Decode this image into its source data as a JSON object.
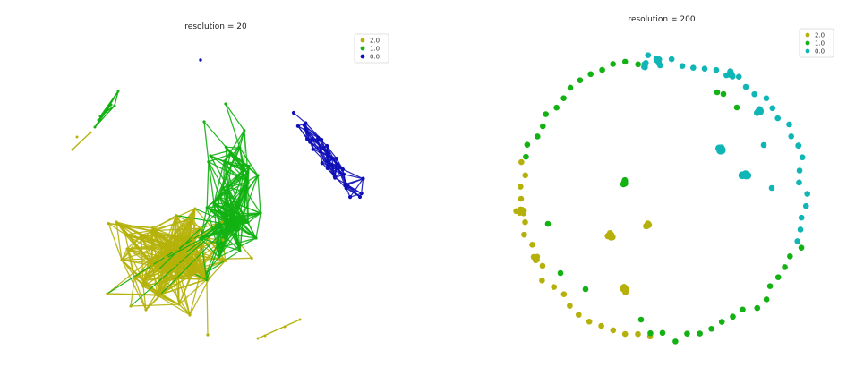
{
  "chart_data": [
    {
      "type": "network",
      "title": "resolution = 20",
      "legend": {
        "placement": "top-right",
        "entries": [
          {
            "label": "2.0",
            "color": "#b5b10a"
          },
          {
            "label": "1.0",
            "color": "#13b113"
          },
          {
            "label": "0.0",
            "color": "#1010b8"
          }
        ]
      },
      "clusters": [
        {
          "community": "2.0",
          "color": "#b5b10a",
          "node_count": 45
        },
        {
          "community": "1.0",
          "color": "#13b113",
          "node_count": 40
        },
        {
          "community": "0.0",
          "color": "#1010b8",
          "node_count": 25
        }
      ],
      "axes": "off"
    },
    {
      "type": "network",
      "title": "resolution = 200",
      "legend": {
        "placement": "top-right",
        "entries": [
          {
            "label": "2.0",
            "color": "#b5b10a"
          },
          {
            "label": "1.0",
            "color": "#13b113"
          },
          {
            "label": "0.0",
            "color": "#10b6b6"
          }
        ]
      },
      "layout": "circular ring with a few inner clusters",
      "axes": "off"
    }
  ]
}
